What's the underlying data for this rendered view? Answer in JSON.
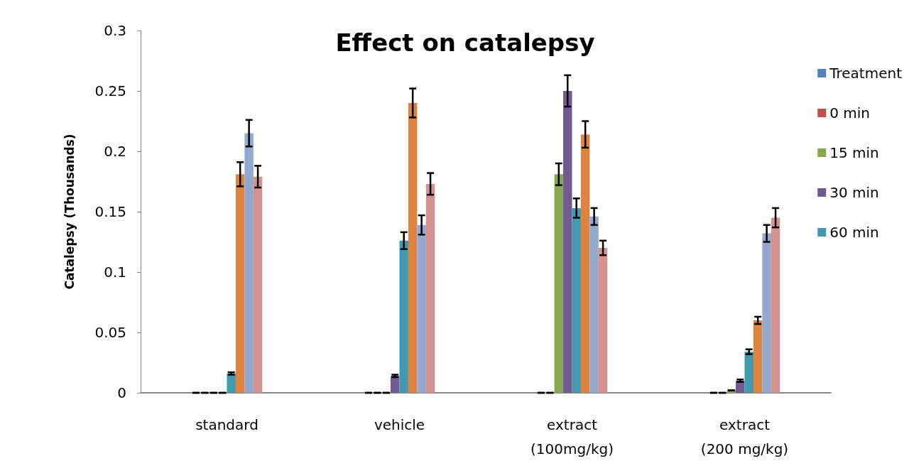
{
  "chart_data": {
    "type": "bar",
    "title": "Effect on catalepsy",
    "ylabel": "Catalepsy (Thousands)",
    "categories": [
      "standard",
      "vehicle",
      "extract\n(100mg/kg)",
      "extract\n(200 mg/kg)"
    ],
    "series": [
      {
        "name": "Treatment",
        "color": "#4f81bd",
        "values": [
          0,
          0,
          0,
          0
        ],
        "errors": [
          0,
          0,
          0,
          0
        ]
      },
      {
        "name": "0 min",
        "color": "#c0504d",
        "values": [
          0,
          0,
          0,
          0
        ],
        "errors": [
          0,
          0,
          0,
          0
        ]
      },
      {
        "name": "15 min",
        "color": "#8aa650",
        "values": [
          0,
          0,
          0.181,
          0.002
        ],
        "errors": [
          0,
          0,
          0.009,
          0
        ]
      },
      {
        "name": "30 min",
        "color": "#705a8f",
        "values": [
          0,
          0.014,
          0.25,
          0.01
        ],
        "errors": [
          0,
          0.001,
          0.013,
          0.001
        ]
      },
      {
        "name": "60 min",
        "color": "#4199b0",
        "values": [
          0.016,
          0.126,
          0.153,
          0.034
        ],
        "errors": [
          0.001,
          0.007,
          0.008,
          0.002
        ]
      },
      {
        "color": "#dd8540",
        "values": [
          0.181,
          0.24,
          0.214,
          0.06
        ],
        "errors": [
          0.01,
          0.012,
          0.011,
          0.003
        ]
      },
      {
        "color": "#94a9ce",
        "values": [
          0.215,
          0.139,
          0.146,
          0.132
        ],
        "errors": [
          0.011,
          0.008,
          0.007,
          0.007
        ]
      },
      {
        "color": "#d49292",
        "values": [
          0.179,
          0.173,
          0.12,
          0.145
        ],
        "errors": [
          0.009,
          0.009,
          0.006,
          0.008
        ]
      }
    ],
    "ylim": [
      0,
      0.3
    ],
    "yticks": [
      0,
      0.05,
      0.1,
      0.15,
      0.2,
      0.25,
      0.3
    ],
    "grid": false,
    "legend": "right"
  }
}
